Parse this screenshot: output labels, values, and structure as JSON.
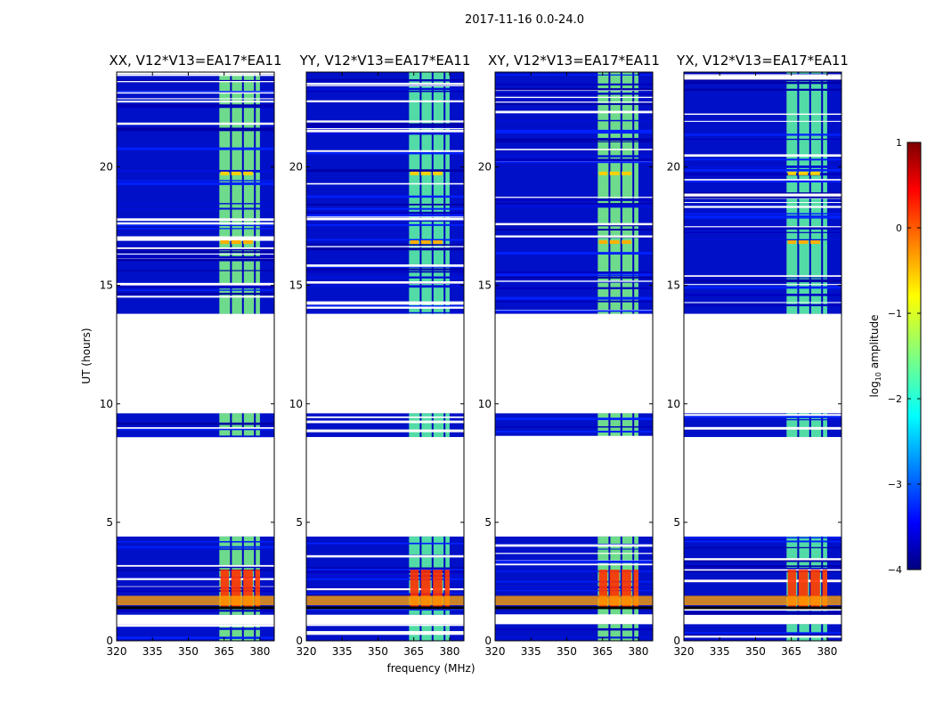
{
  "chart_data": {
    "type": "heatmap",
    "suptitle": "2017-11-16 0.0-24.0",
    "xlabel": "frequency (MHz)",
    "ylabel": "UT (hours)",
    "xlim": [
      320,
      386
    ],
    "ylim": [
      0,
      24
    ],
    "x_ticks": [
      320,
      335,
      350,
      365,
      380
    ],
    "y_ticks": [
      0,
      5,
      10,
      15,
      20
    ],
    "panels": [
      {
        "title": "XX, V12*V13=EA17*EA11"
      },
      {
        "title": "YY, V12*V13=EA17*EA11"
      },
      {
        "title": "XY, V12*V13=EA17*EA11"
      },
      {
        "title": "YX, V12*V13=EA17*EA11"
      }
    ],
    "data_blocks_ut": [
      [
        0.0,
        0.7
      ],
      [
        1.1,
        4.4
      ],
      [
        8.6,
        9.6
      ],
      [
        13.8,
        24.0
      ]
    ],
    "bright_band_mhz": [
      363,
      380
    ],
    "colorbar": {
      "label": "log10 amplitude",
      "range": [
        -4,
        1
      ],
      "ticks": [
        1,
        0,
        -1,
        -2,
        -3,
        -4
      ],
      "tick_labels": [
        "1",
        "0",
        "−1",
        "−2",
        "−3",
        "−4"
      ]
    }
  }
}
